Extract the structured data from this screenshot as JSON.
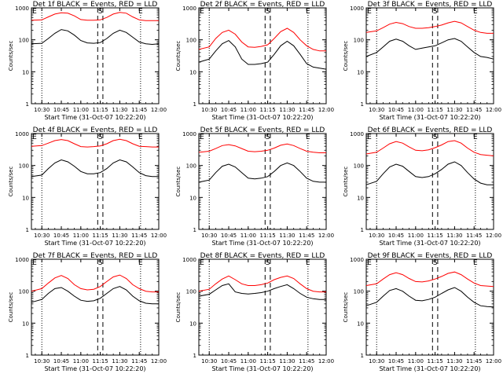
{
  "figure": {
    "x_axis_label": "Start Time (31-Oct-07 10:22:20)",
    "y_axis_label": "Counts/sec",
    "y_tick_labels": [
      "1",
      "10",
      "100",
      "1000"
    ],
    "x_tick_labels": [
      "10:30",
      "10:45",
      "11:00",
      "11:15",
      "11:30",
      "11:45",
      "12:00"
    ],
    "marker_labels": [
      "E",
      "S",
      "E"
    ],
    "colors": {
      "events": "#000000",
      "lld": "#ff0000",
      "background": "#ffffff"
    }
  },
  "chart_data": [
    {
      "type": "line",
      "title": "Det 1f BLACK = Events, RED = LLD",
      "xlabel": "Start Time (31-Oct-07 10:22:20)",
      "ylabel": "Counts/sec",
      "y_scale": "log",
      "ylim": [
        1,
        1000
      ],
      "xlim": [
        "10:22",
        "12:00"
      ],
      "x": [
        "10:22",
        "10:30",
        "10:35",
        "10:40",
        "10:45",
        "10:50",
        "10:55",
        "11:00",
        "11:05",
        "11:10",
        "11:15",
        "11:20",
        "11:25",
        "11:30",
        "11:35",
        "11:40",
        "11:45",
        "11:50",
        "11:55",
        "12:00"
      ],
      "series": [
        {
          "name": "Events",
          "color": "#000000",
          "values": [
            75,
            78,
            110,
            160,
            210,
            190,
            140,
            95,
            80,
            78,
            82,
            110,
            160,
            200,
            170,
            120,
            85,
            75,
            72,
            75
          ]
        },
        {
          "name": "LLD",
          "color": "#ff0000",
          "values": [
            410,
            420,
            520,
            640,
            700,
            680,
            560,
            430,
            410,
            410,
            420,
            500,
            640,
            720,
            680,
            520,
            420,
            400,
            400,
            400
          ]
        }
      ]
    },
    {
      "type": "line",
      "title": "Det 2f BLACK = Events, RED = LLD",
      "xlabel": "Start Time (31-Oct-07 10:22:20)",
      "ylabel": "Counts/sec",
      "y_scale": "log",
      "ylim": [
        1,
        1000
      ],
      "xlim": [
        "10:22",
        "12:00"
      ],
      "x": [
        "10:22",
        "10:30",
        "10:35",
        "10:40",
        "10:45",
        "10:50",
        "10:55",
        "11:00",
        "11:05",
        "11:10",
        "11:15",
        "11:20",
        "11:25",
        "11:30",
        "11:35",
        "11:40",
        "11:45",
        "11:50",
        "11:55",
        "12:00"
      ],
      "series": [
        {
          "name": "Events",
          "color": "#000000",
          "values": [
            20,
            25,
            45,
            75,
            95,
            60,
            25,
            17,
            17,
            18,
            20,
            35,
            65,
            90,
            65,
            35,
            18,
            14,
            13,
            12
          ]
        },
        {
          "name": "LLD",
          "color": "#ff0000",
          "values": [
            50,
            60,
            110,
            170,
            200,
            150,
            85,
            60,
            58,
            62,
            70,
            110,
            180,
            230,
            170,
            100,
            65,
            50,
            45,
            45
          ]
        }
      ]
    },
    {
      "type": "line",
      "title": "Det 3f BLACK = Events, RED = LLD",
      "xlabel": "Start Time (31-Oct-07 10:22:20)",
      "ylabel": "Counts/sec",
      "y_scale": "log",
      "ylim": [
        1,
        1000
      ],
      "xlim": [
        "10:22",
        "12:00"
      ],
      "x": [
        "10:22",
        "10:30",
        "10:35",
        "10:40",
        "10:45",
        "10:50",
        "10:55",
        "11:00",
        "11:05",
        "11:10",
        "11:15",
        "11:20",
        "11:25",
        "11:30",
        "11:35",
        "11:40",
        "11:45",
        "11:50",
        "11:55",
        "12:00"
      ],
      "series": [
        {
          "name": "Events",
          "color": "#000000",
          "values": [
            30,
            40,
            60,
            90,
            105,
            90,
            65,
            50,
            55,
            60,
            65,
            80,
            100,
            110,
            90,
            60,
            40,
            30,
            28,
            25
          ]
        },
        {
          "name": "LLD",
          "color": "#ff0000",
          "values": [
            170,
            190,
            240,
            310,
            350,
            320,
            260,
            230,
            230,
            240,
            260,
            290,
            340,
            380,
            340,
            260,
            200,
            170,
            160,
            160
          ]
        }
      ]
    },
    {
      "type": "line",
      "title": "Det 4f BLACK = Events, RED = LLD",
      "xlabel": "Start Time (31-Oct-07 10:22:20)",
      "ylabel": "Counts/sec",
      "y_scale": "log",
      "ylim": [
        1,
        1000
      ],
      "xlim": [
        "10:22",
        "12:00"
      ],
      "x": [
        "10:22",
        "10:30",
        "10:35",
        "10:40",
        "10:45",
        "10:50",
        "10:55",
        "11:00",
        "11:05",
        "11:10",
        "11:15",
        "11:20",
        "11:25",
        "11:30",
        "11:35",
        "11:40",
        "11:45",
        "11:50",
        "11:55",
        "12:00"
      ],
      "series": [
        {
          "name": "Events",
          "color": "#000000",
          "values": [
            45,
            50,
            80,
            120,
            150,
            130,
            95,
            65,
            55,
            55,
            60,
            80,
            120,
            150,
            130,
            90,
            60,
            48,
            45,
            45
          ]
        },
        {
          "name": "LLD",
          "color": "#ff0000",
          "values": [
            400,
            420,
            500,
            600,
            650,
            600,
            480,
            390,
            380,
            390,
            410,
            480,
            600,
            660,
            600,
            480,
            400,
            390,
            380,
            380
          ]
        }
      ]
    },
    {
      "type": "line",
      "title": "Det 5f BLACK = Events, RED = LLD",
      "xlabel": "Start Time (31-Oct-07 10:22:20)",
      "ylabel": "Counts/sec",
      "y_scale": "log",
      "ylim": [
        1,
        1000
      ],
      "xlim": [
        "10:22",
        "12:00"
      ],
      "x": [
        "10:22",
        "10:30",
        "10:35",
        "10:40",
        "10:45",
        "10:50",
        "10:55",
        "11:00",
        "11:05",
        "11:10",
        "11:15",
        "11:20",
        "11:25",
        "11:30",
        "11:35",
        "11:40",
        "11:45",
        "11:50",
        "11:55",
        "12:00"
      ],
      "series": [
        {
          "name": "Events",
          "color": "#000000",
          "values": [
            30,
            35,
            60,
            95,
            110,
            90,
            60,
            40,
            38,
            40,
            45,
            65,
            100,
            120,
            100,
            65,
            40,
            32,
            30,
            30
          ]
        },
        {
          "name": "LLD",
          "color": "#ff0000",
          "values": [
            260,
            280,
            340,
            420,
            450,
            410,
            340,
            280,
            270,
            280,
            300,
            350,
            430,
            470,
            420,
            340,
            280,
            260,
            250,
            250
          ]
        }
      ]
    },
    {
      "type": "line",
      "title": "Det 6f BLACK = Events, RED = LLD",
      "xlabel": "Start Time (31-Oct-07 10:22:20)",
      "ylabel": "Counts/sec",
      "y_scale": "log",
      "ylim": [
        1,
        1000
      ],
      "xlim": [
        "10:22",
        "12:00"
      ],
      "x": [
        "10:22",
        "10:30",
        "10:35",
        "10:40",
        "10:45",
        "10:50",
        "10:55",
        "11:00",
        "11:05",
        "11:10",
        "11:15",
        "11:20",
        "11:25",
        "11:30",
        "11:35",
        "11:40",
        "11:45",
        "11:50",
        "11:55",
        "12:00"
      ],
      "series": [
        {
          "name": "Events",
          "color": "#000000",
          "values": [
            25,
            32,
            55,
            90,
            110,
            95,
            65,
            45,
            42,
            45,
            55,
            75,
            110,
            130,
            100,
            60,
            38,
            28,
            25,
            25
          ]
        },
        {
          "name": "LLD",
          "color": "#ff0000",
          "values": [
            230,
            260,
            350,
            480,
            560,
            500,
            380,
            300,
            290,
            310,
            360,
            440,
            560,
            600,
            500,
            350,
            260,
            220,
            210,
            200
          ]
        }
      ]
    },
    {
      "type": "line",
      "title": "Det 7f BLACK = Events, RED = LLD",
      "xlabel": "Start Time (31-Oct-07 10:22:20)",
      "ylabel": "Counts/sec",
      "y_scale": "log",
      "ylim": [
        1,
        1000
      ],
      "xlim": [
        "10:22",
        "12:00"
      ],
      "x": [
        "10:22",
        "10:30",
        "10:35",
        "10:40",
        "10:45",
        "10:50",
        "10:55",
        "11:00",
        "11:05",
        "11:10",
        "11:15",
        "11:20",
        "11:25",
        "11:30",
        "11:35",
        "11:40",
        "11:45",
        "11:50",
        "11:55",
        "12:00"
      ],
      "series": [
        {
          "name": "Events",
          "color": "#000000",
          "values": [
            45,
            55,
            85,
            120,
            130,
            100,
            70,
            52,
            48,
            50,
            60,
            85,
            120,
            140,
            110,
            70,
            50,
            42,
            40,
            40
          ]
        },
        {
          "name": "LLD",
          "color": "#ff0000",
          "values": [
            100,
            120,
            180,
            260,
            310,
            250,
            160,
            120,
            110,
            115,
            140,
            200,
            280,
            320,
            250,
            160,
            120,
            100,
            95,
            95
          ]
        }
      ]
    },
    {
      "type": "line",
      "title": "Det 8f BLACK = Events, RED = LLD",
      "xlabel": "Start Time (31-Oct-07 10:22:20)",
      "ylabel": "Counts/sec",
      "y_scale": "log",
      "ylim": [
        1,
        1000
      ],
      "xlim": [
        "10:22",
        "12:00"
      ],
      "x": [
        "10:22",
        "10:30",
        "10:35",
        "10:40",
        "10:45",
        "10:50",
        "10:55",
        "11:00",
        "11:05",
        "11:10",
        "11:15",
        "11:20",
        "11:25",
        "11:30",
        "11:35",
        "11:40",
        "11:45",
        "11:50",
        "11:55",
        "12:00"
      ],
      "series": [
        {
          "name": "Events",
          "color": "#000000",
          "values": [
            70,
            80,
            110,
            150,
            170,
            95,
            85,
            82,
            85,
            90,
            100,
            120,
            140,
            160,
            120,
            85,
            65,
            58,
            55,
            55
          ]
        },
        {
          "name": "LLD",
          "color": "#ff0000",
          "values": [
            100,
            115,
            170,
            240,
            300,
            230,
            170,
            150,
            150,
            160,
            180,
            230,
            270,
            300,
            250,
            170,
            120,
            100,
            95,
            95
          ]
        }
      ]
    },
    {
      "type": "line",
      "title": "Det 9f BLACK = Events, RED = LLD",
      "xlabel": "Start Time (31-Oct-07 10:22:20)",
      "ylabel": "Counts/sec",
      "y_scale": "log",
      "ylim": [
        1,
        1000
      ],
      "xlim": [
        "10:22",
        "12:00"
      ],
      "x": [
        "10:22",
        "10:30",
        "10:35",
        "10:40",
        "10:45",
        "10:50",
        "10:55",
        "11:00",
        "11:05",
        "11:10",
        "11:15",
        "11:20",
        "11:25",
        "11:30",
        "11:35",
        "11:40",
        "11:45",
        "11:50",
        "11:55",
        "12:00"
      ],
      "series": [
        {
          "name": "Events",
          "color": "#000000",
          "values": [
            35,
            45,
            70,
            105,
            120,
            100,
            70,
            52,
            50,
            55,
            65,
            85,
            110,
            130,
            100,
            65,
            45,
            35,
            33,
            32
          ]
        },
        {
          "name": "LLD",
          "color": "#ff0000",
          "values": [
            150,
            170,
            240,
            330,
            380,
            330,
            250,
            200,
            195,
            210,
            240,
            290,
            360,
            400,
            330,
            240,
            180,
            150,
            145,
            140
          ]
        }
      ]
    }
  ]
}
